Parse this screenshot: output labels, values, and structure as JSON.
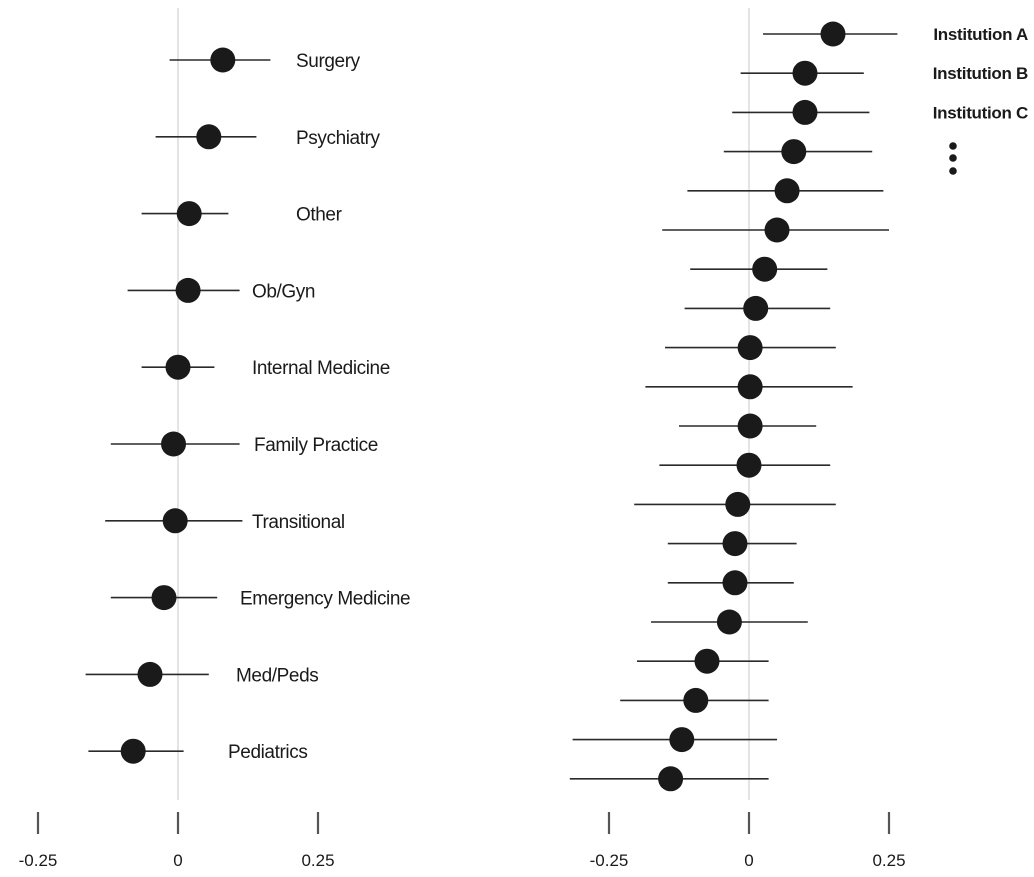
{
  "chart_data": [
    {
      "type": "scatter",
      "title": "",
      "xlabel": "",
      "ylabel": "",
      "xlim": [
        -0.25,
        0.25
      ],
      "grid": false,
      "x_ticks": [
        -0.25,
        0,
        0.25
      ],
      "x_tick_labels": [
        "-0.25",
        "0",
        "0.25"
      ],
      "categories": [
        "Surgery",
        "Psychiatry",
        "Other",
        "Ob/Gyn",
        "Internal Medicine",
        "Family Practice",
        "Transitional",
        "Emergency Medicine",
        "Med/Peds",
        "Pediatrics"
      ],
      "estimates": [
        0.08,
        0.055,
        0.02,
        0.018,
        0,
        -0.008,
        -0.005,
        -0.025,
        -0.05,
        -0.08
      ],
      "ci_low": [
        -0.015,
        -0.04,
        -0.065,
        -0.09,
        -0.065,
        -0.12,
        -0.13,
        -0.12,
        -0.165,
        -0.16
      ],
      "ci_high": [
        0.165,
        0.14,
        0.09,
        0.11,
        0.065,
        0.11,
        0.115,
        0.07,
        0.055,
        0.01
      ]
    },
    {
      "type": "scatter",
      "title": "",
      "xlabel": "",
      "ylabel": "",
      "xlim": [
        -0.25,
        0.25
      ],
      "grid": false,
      "x_ticks": [
        -0.25,
        0,
        0.25
      ],
      "x_tick_labels": [
        "-0.25",
        "0",
        "0.25"
      ],
      "labels": [
        "Institution A",
        "Institution B",
        "Institution C"
      ],
      "ellipsis": "⋮",
      "estimates": [
        0.15,
        0.1,
        0.1,
        0.08,
        0.068,
        0.05,
        0.028,
        0.012,
        0.002,
        0.002,
        0.002,
        0.0,
        -0.02,
        -0.025,
        -0.025,
        -0.035,
        -0.075,
        -0.095,
        -0.12,
        -0.14
      ],
      "ci_low": [
        0.025,
        -0.015,
        -0.03,
        -0.045,
        -0.11,
        -0.155,
        -0.105,
        -0.115,
        -0.15,
        -0.185,
        -0.125,
        -0.16,
        -0.205,
        -0.145,
        -0.145,
        -0.175,
        -0.2,
        -0.23,
        -0.315,
        -0.32
      ],
      "ci_high": [
        0.265,
        0.205,
        0.215,
        0.22,
        0.24,
        0.25,
        0.14,
        0.145,
        0.155,
        0.185,
        0.12,
        0.145,
        0.155,
        0.085,
        0.08,
        0.105,
        0.035,
        0.035,
        0.05,
        0.035
      ]
    }
  ]
}
